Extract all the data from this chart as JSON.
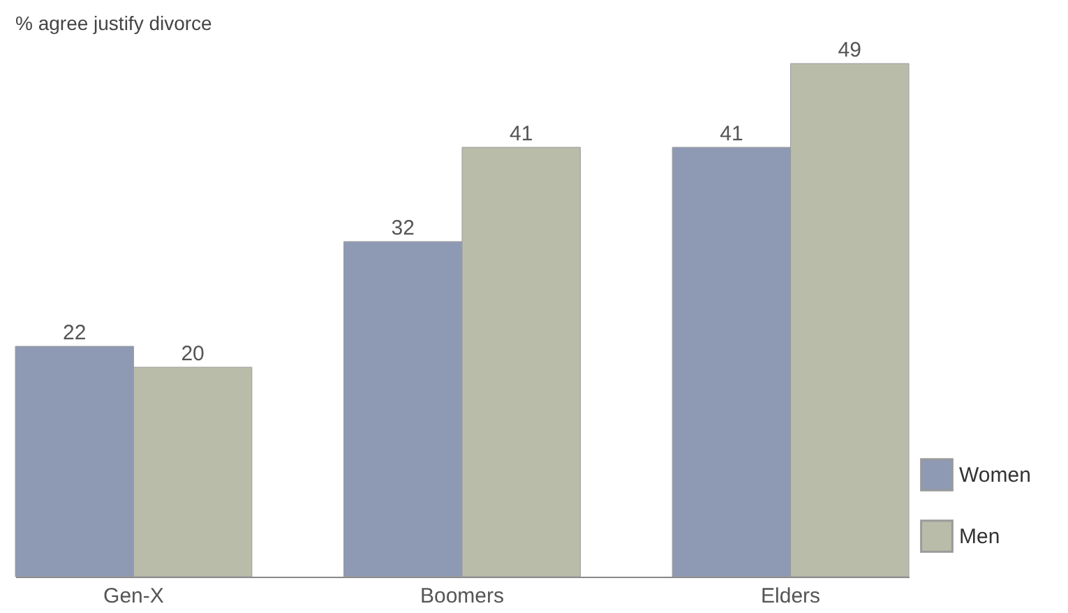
{
  "chart_data": {
    "type": "bar",
    "title": "% agree justify divorce",
    "categories": [
      "Gen-X",
      "Boomers",
      "Elders"
    ],
    "series": [
      {
        "name": "Women",
        "color": "#8e9ab4",
        "values": [
          22,
          32,
          41
        ]
      },
      {
        "name": "Men",
        "color": "#babcaa",
        "values": [
          20,
          41,
          49
        ]
      }
    ],
    "data_labels": true,
    "legend": "bottom right",
    "grid": false
  }
}
